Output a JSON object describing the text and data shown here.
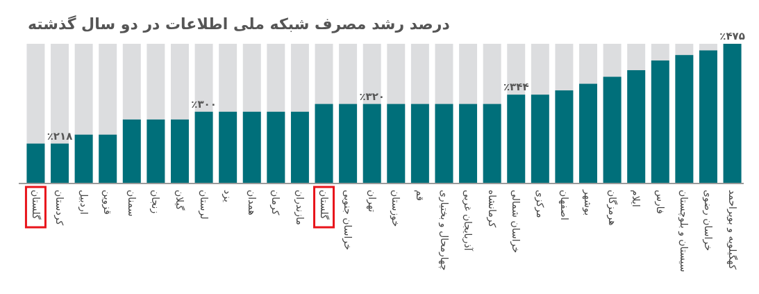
{
  "chart_data": {
    "type": "bar",
    "title": "درصد رشد مصرف شبکه ملی اطلاعات در دو سال گذشته",
    "categories": [
      "گلستان",
      "کردستان",
      "اردبیل",
      "قزوین",
      "سمنان",
      "زنجان",
      "گیلان",
      "لرستان",
      "یزد",
      "همدان",
      "کرمان",
      "مازندران",
      "گلستان",
      "خراسان جنوبی",
      "تهران",
      "خوزستان",
      "قم",
      "چهارمحال و بختیاری",
      "آذربایجان غربی",
      "کرمانشاه",
      "خراسان شمالی",
      "مرکزی",
      "اصفهان",
      "بوشهر",
      "هرمزگان",
      "ایلام",
      "فارس",
      "سیستان و بلوچستان",
      "خراسان رضوی",
      "کهگیلویه و بویراحمد"
    ],
    "values": [
      218,
      218,
      241,
      241,
      280,
      280,
      280,
      300,
      300,
      300,
      300,
      300,
      320,
      320,
      320,
      320,
      320,
      320,
      320,
      320,
      344,
      344,
      355,
      372,
      390,
      407,
      432,
      446,
      458,
      475
    ],
    "value_labels": [
      null,
      "٪۲۱۸",
      null,
      null,
      null,
      null,
      null,
      "٪۳۰۰",
      null,
      null,
      null,
      null,
      null,
      null,
      "٪۳۲۰",
      null,
      null,
      null,
      null,
      null,
      "٪۳۴۴",
      null,
      null,
      null,
      null,
      null,
      null,
      null,
      null,
      "٪۴۷۵"
    ],
    "color": "#006f7a",
    "ylim": [
      117,
      475
    ],
    "tick_labels": "x"
  }
}
